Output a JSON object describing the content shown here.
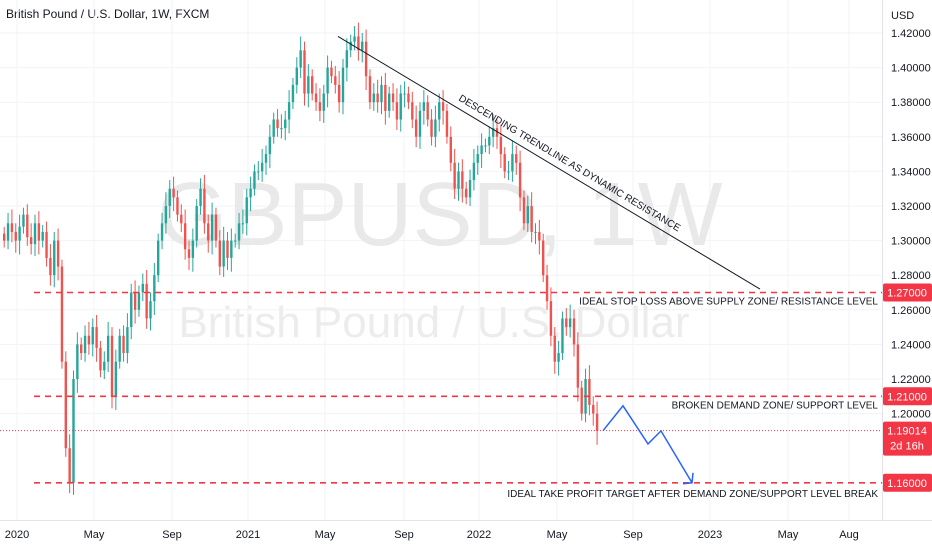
{
  "header": {
    "title": "British Pound / U.S. Dollar, 1W, FXCM"
  },
  "watermark": {
    "symbol": "GBPUSD, 1W",
    "name": "British Pound / U.S. Dollar"
  },
  "colors": {
    "up": "#26a69a",
    "down": "#ef5350",
    "level": "#f23645",
    "line": "#131722",
    "path": "#2962ff",
    "grid": "#f0f3fa"
  },
  "chart_data": {
    "type": "candlestick",
    "timeframe": "1W",
    "y_axis": {
      "unit": "USD",
      "ylim": [
        1.14,
        1.43
      ],
      "ticks": [
        "1.42000",
        "1.40000",
        "1.38000",
        "1.36000",
        "1.34000",
        "1.32000",
        "1.30000",
        "1.28000",
        "1.26000",
        "1.24000",
        "1.22000",
        "1.20000"
      ]
    },
    "x_axis": {
      "ticks": [
        "2020",
        "May",
        "Sep",
        "2021",
        "May",
        "Sep",
        "2022",
        "May",
        "Sep",
        "2023",
        "May",
        "Aug"
      ]
    },
    "close_series": [
      1.3,
      1.31,
      1.305,
      1.3,
      1.308,
      1.315,
      1.302,
      1.298,
      1.31,
      1.3,
      1.305,
      1.29,
      1.28,
      1.3,
      1.285,
      1.23,
      1.18,
      1.16,
      1.22,
      1.24,
      1.235,
      1.245,
      1.24,
      1.25,
      1.238,
      1.225,
      1.23,
      1.245,
      1.21,
      1.23,
      1.245,
      1.235,
      1.25,
      1.27,
      1.26,
      1.27,
      1.275,
      1.255,
      1.265,
      1.28,
      1.3,
      1.31,
      1.32,
      1.33,
      1.325,
      1.315,
      1.31,
      1.295,
      1.29,
      1.3,
      1.32,
      1.33,
      1.31,
      1.3,
      1.315,
      1.3,
      1.285,
      1.3,
      1.29,
      1.3,
      1.3,
      1.31,
      1.31,
      1.325,
      1.33,
      1.34,
      1.34,
      1.345,
      1.35,
      1.36,
      1.37,
      1.365,
      1.365,
      1.37,
      1.38,
      1.39,
      1.4,
      1.41,
      1.385,
      1.395,
      1.385,
      1.38,
      1.375,
      1.385,
      1.4,
      1.395,
      1.39,
      1.38,
      1.4,
      1.41,
      1.415,
      1.418,
      1.41,
      1.415,
      1.395,
      1.38,
      1.385,
      1.38,
      1.39,
      1.375,
      1.385,
      1.38,
      1.37,
      1.385,
      1.385,
      1.38,
      1.37,
      1.36,
      1.375,
      1.38,
      1.37,
      1.36,
      1.37,
      1.38,
      1.375,
      1.36,
      1.345,
      1.33,
      1.34,
      1.33,
      1.325,
      1.335,
      1.345,
      1.35,
      1.355,
      1.355,
      1.36,
      1.365,
      1.36,
      1.35,
      1.34,
      1.34,
      1.35,
      1.345,
      1.325,
      1.31,
      1.32,
      1.305,
      1.305,
      1.3,
      1.28,
      1.265,
      1.245,
      1.23,
      1.235,
      1.255,
      1.25,
      1.255,
      1.24,
      1.215,
      1.2,
      1.22,
      1.205,
      1.2,
      1.19
    ],
    "levels": [
      {
        "value": 1.27,
        "tag": "1.27000",
        "label": "IDEAL STOP LOSS ABOVE SUPPLY ZONE/ RESISTANCE LEVEL"
      },
      {
        "value": 1.21,
        "tag": "1.21000",
        "label": "BROKEN DEMAND ZONE/ SUPPORT LEVEL"
      },
      {
        "value": 1.16,
        "tag": "1.16000",
        "label": "IDEAL TAKE PROFIT TARGET AFTER DEMAND ZONE/SUPPORT LEVEL BREAK"
      }
    ],
    "current_price": {
      "value": 1.19014,
      "tag": "1.19014",
      "countdown": "2d 16h"
    },
    "trendline": {
      "label": "DESCENDING TRENDLINE AS DYNAMIC RESISTANCE",
      "from": 1.418,
      "to": 1.272
    },
    "projected_path": [
      1.19014,
      1.2045,
      1.1825,
      1.19,
      1.16
    ]
  }
}
